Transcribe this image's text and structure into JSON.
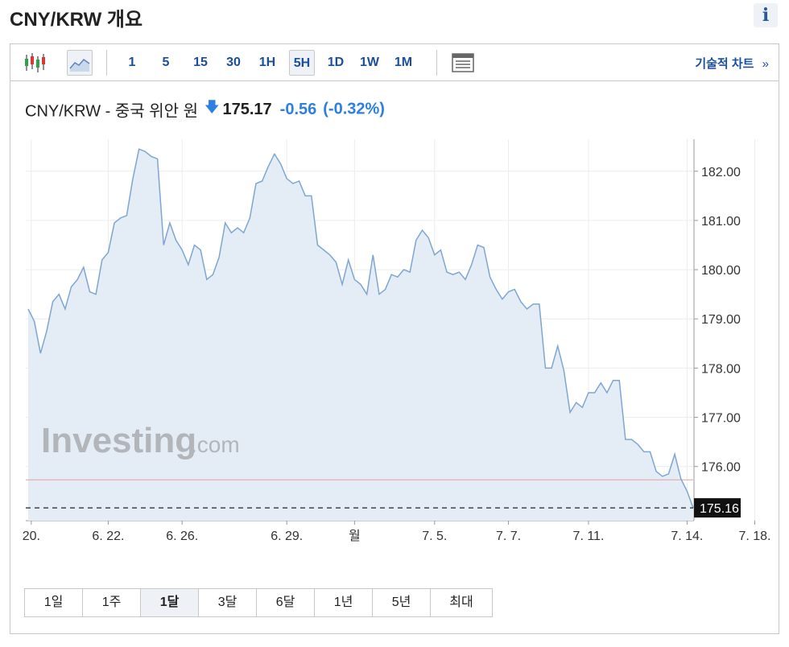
{
  "page": {
    "title": "CNY/KRW 개요",
    "info_label": "i"
  },
  "toolbar": {
    "intervals": [
      "1",
      "5",
      "15",
      "30",
      "1H",
      "5H",
      "1D",
      "1W",
      "1M"
    ],
    "active_interval": "5H",
    "tech_chart_label": "기술적 차트",
    "tech_chart_arrow": "»"
  },
  "header": {
    "instrument": "CNY/KRW - 중국 위안 원",
    "direction_arrow": "🡇",
    "last_price": "175.17",
    "change": "-0.56",
    "change_pct": "(-0.32%)"
  },
  "watermark": {
    "brand": "Investing",
    "suffix": ".com"
  },
  "range_buttons": [
    "1일",
    "1주",
    "1달",
    "3달",
    "6달",
    "1년",
    "5년",
    "최대"
  ],
  "active_range": "1달",
  "colors": {
    "line": "#7ea6d2",
    "fill": "#e4ecf5",
    "accent_blue": "#1b4f9c",
    "change_blue": "#2d7fe0",
    "ref_line": "#e8a0a0",
    "price_tag_bg": "#111111"
  },
  "chart_data": {
    "type": "area",
    "title": "",
    "xlabel": "",
    "ylabel": "",
    "ylim": [
      174.9,
      182.65
    ],
    "y_ticks": [
      "176.00",
      "177.00",
      "178.00",
      "179.00",
      "180.00",
      "181.00",
      "182.00"
    ],
    "x_tick_labels": [
      "20.",
      "6. 22.",
      "6. 26.",
      "6. 29.",
      "월",
      "7. 5.",
      "7. 7.",
      "7. 11.",
      "7. 14.",
      "7. 18."
    ],
    "x_tick_index": [
      0.5,
      13,
      25,
      42,
      53,
      66,
      78,
      91,
      107,
      118
    ],
    "reference_value": 175.73,
    "last_value": 175.16,
    "last_value_label": "175.16",
    "values": [
      179.2,
      178.95,
      178.3,
      178.75,
      179.35,
      179.5,
      179.2,
      179.65,
      179.8,
      180.05,
      179.55,
      179.5,
      180.2,
      180.35,
      180.95,
      181.05,
      181.1,
      181.85,
      182.45,
      182.4,
      182.3,
      182.25,
      180.5,
      180.95,
      180.6,
      180.4,
      180.1,
      180.5,
      180.4,
      179.8,
      179.9,
      180.25,
      180.95,
      180.75,
      180.85,
      180.75,
      181.05,
      181.75,
      181.8,
      182.1,
      182.35,
      182.15,
      181.85,
      181.75,
      181.8,
      181.5,
      181.5,
      180.5,
      180.4,
      180.3,
      180.15,
      179.7,
      180.2,
      179.8,
      179.7,
      179.5,
      180.3,
      179.5,
      179.6,
      179.9,
      179.85,
      180.0,
      179.95,
      180.6,
      180.8,
      180.65,
      180.3,
      180.4,
      179.95,
      179.9,
      179.95,
      179.8,
      180.1,
      180.5,
      180.45,
      179.85,
      179.6,
      179.4,
      179.55,
      179.6,
      179.35,
      179.2,
      179.3,
      179.3,
      178.0,
      178.0,
      178.45,
      177.95,
      177.1,
      177.3,
      177.2,
      177.5,
      177.5,
      177.7,
      177.5,
      177.75,
      177.75,
      176.55,
      176.55,
      176.45,
      176.3,
      176.3,
      175.9,
      175.8,
      175.85,
      176.25,
      175.75,
      175.5,
      175.16
    ]
  }
}
